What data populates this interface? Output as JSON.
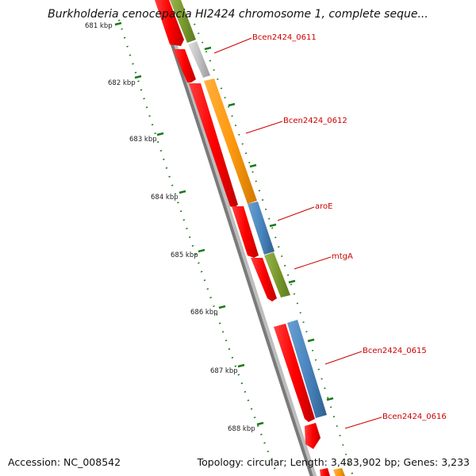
{
  "title": "Burkholderia cenocepacia HI2424 chromosome 1, complete seque...",
  "footer": {
    "accession": "Accession: NC_008542",
    "summary": "Topology: circular; Length: 3,483,902 bp; Genes: 3,233"
  },
  "ticks": [
    "681 kbp",
    "682 kbp",
    "683 kbp",
    "684 kbp",
    "685 kbp",
    "686 kbp",
    "687 kbp",
    "688 kbp"
  ],
  "gene_labels": [
    "Bcen2424_0611",
    "Bcen2424_0612",
    "aroE",
    "mtgA",
    "Bcen2424_0615",
    "Bcen2424_0616"
  ],
  "colors": {
    "backbone": "#7a7a7a",
    "reverse_gene": "#ff0000",
    "olive": "#7a9a2e",
    "gray_gene": "#c0c0c0",
    "orange": "#ff9a10",
    "steel_blue": "#4a86c0",
    "tick_green": "#1a7a1a",
    "label_red": "#cc0000"
  }
}
